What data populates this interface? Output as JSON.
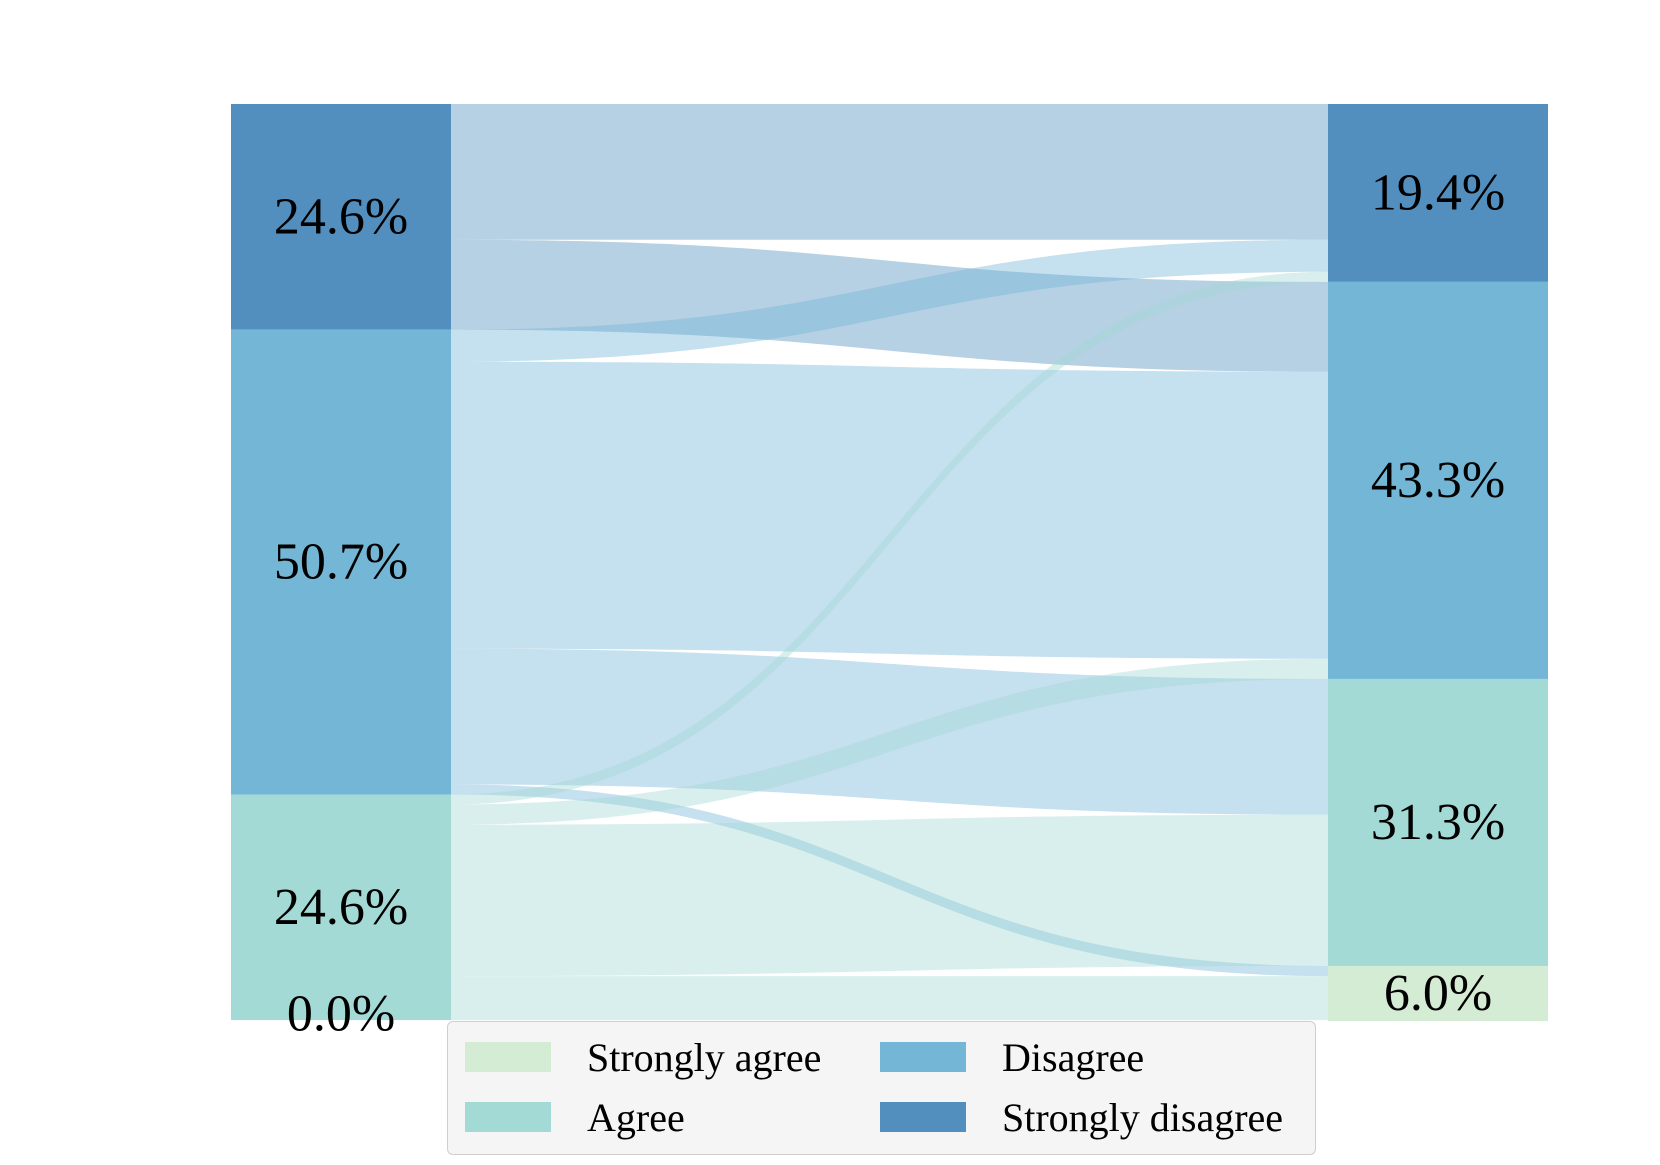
{
  "chart_data": {
    "type": "sankey",
    "categories": [
      "Strongly agree",
      "Agree",
      "Disagree",
      "Strongly disagree"
    ],
    "colors": {
      "Strongly agree": "#d4ecd3",
      "Agree": "#a3dad5",
      "Disagree": "#74b6d6",
      "Strongly disagree": "#528fbe"
    },
    "left": {
      "values": {
        "Strongly agree": 0.0,
        "Agree": 24.6,
        "Disagree": 50.7,
        "Strongly disagree": 24.6
      },
      "labels": {
        "Strongly agree": "0.0%",
        "Agree": "24.6%",
        "Disagree": "50.7%",
        "Strongly disagree": "24.6%"
      }
    },
    "right": {
      "values": {
        "Strongly agree": 6.0,
        "Agree": 31.3,
        "Disagree": 43.3,
        "Strongly disagree": 19.4
      },
      "labels": {
        "Strongly agree": "6.0%",
        "Agree": "31.3%",
        "Disagree": "43.3%",
        "Strongly disagree": "19.4%"
      }
    },
    "flows": [
      {
        "from": "Strongly disagree",
        "to": "Strongly disagree",
        "value": 14.8
      },
      {
        "from": "Strongly disagree",
        "to": "Disagree",
        "value": 9.8
      },
      {
        "from": "Disagree",
        "to": "Strongly disagree",
        "value": 3.5
      },
      {
        "from": "Disagree",
        "to": "Disagree",
        "value": 31.3
      },
      {
        "from": "Disagree",
        "to": "Agree",
        "value": 14.8
      },
      {
        "from": "Disagree",
        "to": "Strongly agree",
        "value": 1.1
      },
      {
        "from": "Agree",
        "to": "Strongly disagree",
        "value": 1.1
      },
      {
        "from": "Agree",
        "to": "Disagree",
        "value": 2.2
      },
      {
        "from": "Agree",
        "to": "Agree",
        "value": 16.5
      },
      {
        "from": "Agree",
        "to": "Strongly agree",
        "value": 4.8
      }
    ],
    "legend": {
      "position": "bottom-center",
      "entries": [
        "Strongly agree",
        "Disagree",
        "Agree",
        "Strongly disagree"
      ]
    }
  }
}
